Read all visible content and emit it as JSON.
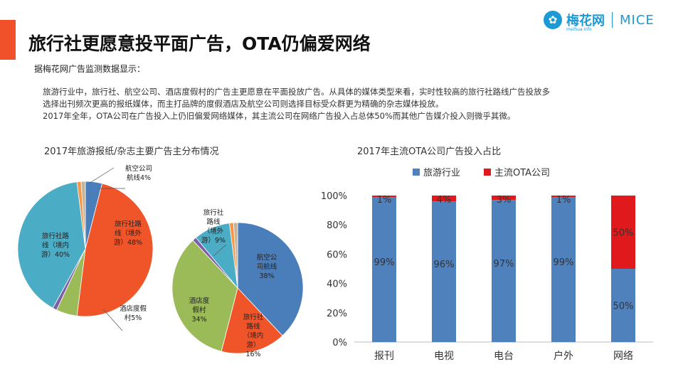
{
  "header": {
    "title": "旅行社更愿意投平面广告，OTA仍偏爱网络",
    "logo_text": "梅花网",
    "logo_sub": "meihua.info",
    "logo_mice": "MICE",
    "accent_color": "#f0512a"
  },
  "intro": {
    "heading": "据梅花网广告监测数据显示：",
    "lines": [
      "旅游行业中，旅行社、航空公司、酒店度假村的广告主更愿意在平面投放广告。从具体的媒体类型来看，实时性较高的旅行社路线广告投放多",
      "选择出刊频次更高的报纸媒体，而主打品牌的度假酒店及航空公司则选择目标受众群更为精确的杂志媒体投放。",
      "2017年全年，OTA公司在广告投入上仍旧偏爱网络媒体，其主流公司在网络广告投入占总体50%而其他广告媒介投入则微乎其微。"
    ]
  },
  "chart_data": [
    {
      "type": "pie",
      "title": "2017年旅游报纸/杂志主要广告主分布情况",
      "charts": [
        {
          "slices": [
            {
              "label": "航空公司航线",
              "value": 4,
              "label_lines": [
                "航空公司",
                "航线4%"
              ],
              "color": "#4a7ebb"
            },
            {
              "label": "旅行社路线（境外游）",
              "value": 48,
              "label_lines": [
                "旅行社路",
                "线（境外",
                "游）48%"
              ],
              "color": "#f0552a"
            },
            {
              "label": "酒店度假村",
              "value": 5,
              "label_lines": [
                "酒店度假",
                "村5%"
              ],
              "color": "#9bbb59"
            },
            {
              "label": "other-1",
              "value": 1,
              "label_lines": [],
              "color": "#7b5ea7"
            },
            {
              "label": "旅行社路线（境内游）",
              "value": 40,
              "label_lines": [
                "旅行社路",
                "线（境内",
                "游）40%"
              ],
              "color": "#4bacc6"
            },
            {
              "label": "other-2",
              "value": 1,
              "label_lines": [],
              "color": "#f79646"
            },
            {
              "label": "other-3",
              "value": 1,
              "label_lines": [],
              "color": "#c6b497"
            }
          ]
        },
        {
          "slices": [
            {
              "label": "航空公司航线",
              "value": 38,
              "label_lines": [
                "航空公",
                "司航线",
                "38%"
              ],
              "color": "#4a7ebb"
            },
            {
              "label": "旅行社路线（境内游）",
              "value": 16,
              "label_lines": [
                "旅行社",
                "路线",
                "（境内",
                "游）",
                "16%"
              ],
              "color": "#f0552a"
            },
            {
              "label": "酒店度假村",
              "value": 34,
              "label_lines": [
                "酒店度",
                "假村",
                "34%"
              ],
              "color": "#9bbb59"
            },
            {
              "label": "other-1",
              "value": 1,
              "label_lines": [],
              "color": "#7b5ea7"
            },
            {
              "label": "旅行社路线（境外游）",
              "value": 9,
              "label_lines": [
                "旅行社",
                "路线",
                "（境外",
                "游）9%"
              ],
              "color": "#4bacc6"
            },
            {
              "label": "other-2",
              "value": 1,
              "label_lines": [],
              "color": "#f79646"
            },
            {
              "label": "other-3",
              "value": 1,
              "label_lines": [],
              "color": "#c6b497"
            }
          ]
        }
      ]
    },
    {
      "type": "bar",
      "stacked": true,
      "title": "2017年主流OTA公司广告投入占比",
      "categories": [
        "报刊",
        "电视",
        "电台",
        "户外",
        "网络"
      ],
      "series": [
        {
          "name": "旅游行业",
          "values": [
            99,
            96,
            97,
            99,
            50
          ],
          "labels": [
            "99%",
            "96%",
            "97%",
            "99%",
            "50%"
          ],
          "color": "#4f81bd"
        },
        {
          "name": "主流OTA公司",
          "values": [
            1,
            4,
            3,
            1,
            50
          ],
          "labels": [
            "1%",
            "4%",
            "3%",
            "1%",
            "50%"
          ],
          "color": "#e0191c"
        }
      ],
      "y_ticks": [
        "0%",
        "20%",
        "40%",
        "60%",
        "80%",
        "100%"
      ],
      "ylim": [
        0,
        100
      ],
      "legend_position": "top",
      "grid": false
    }
  ]
}
